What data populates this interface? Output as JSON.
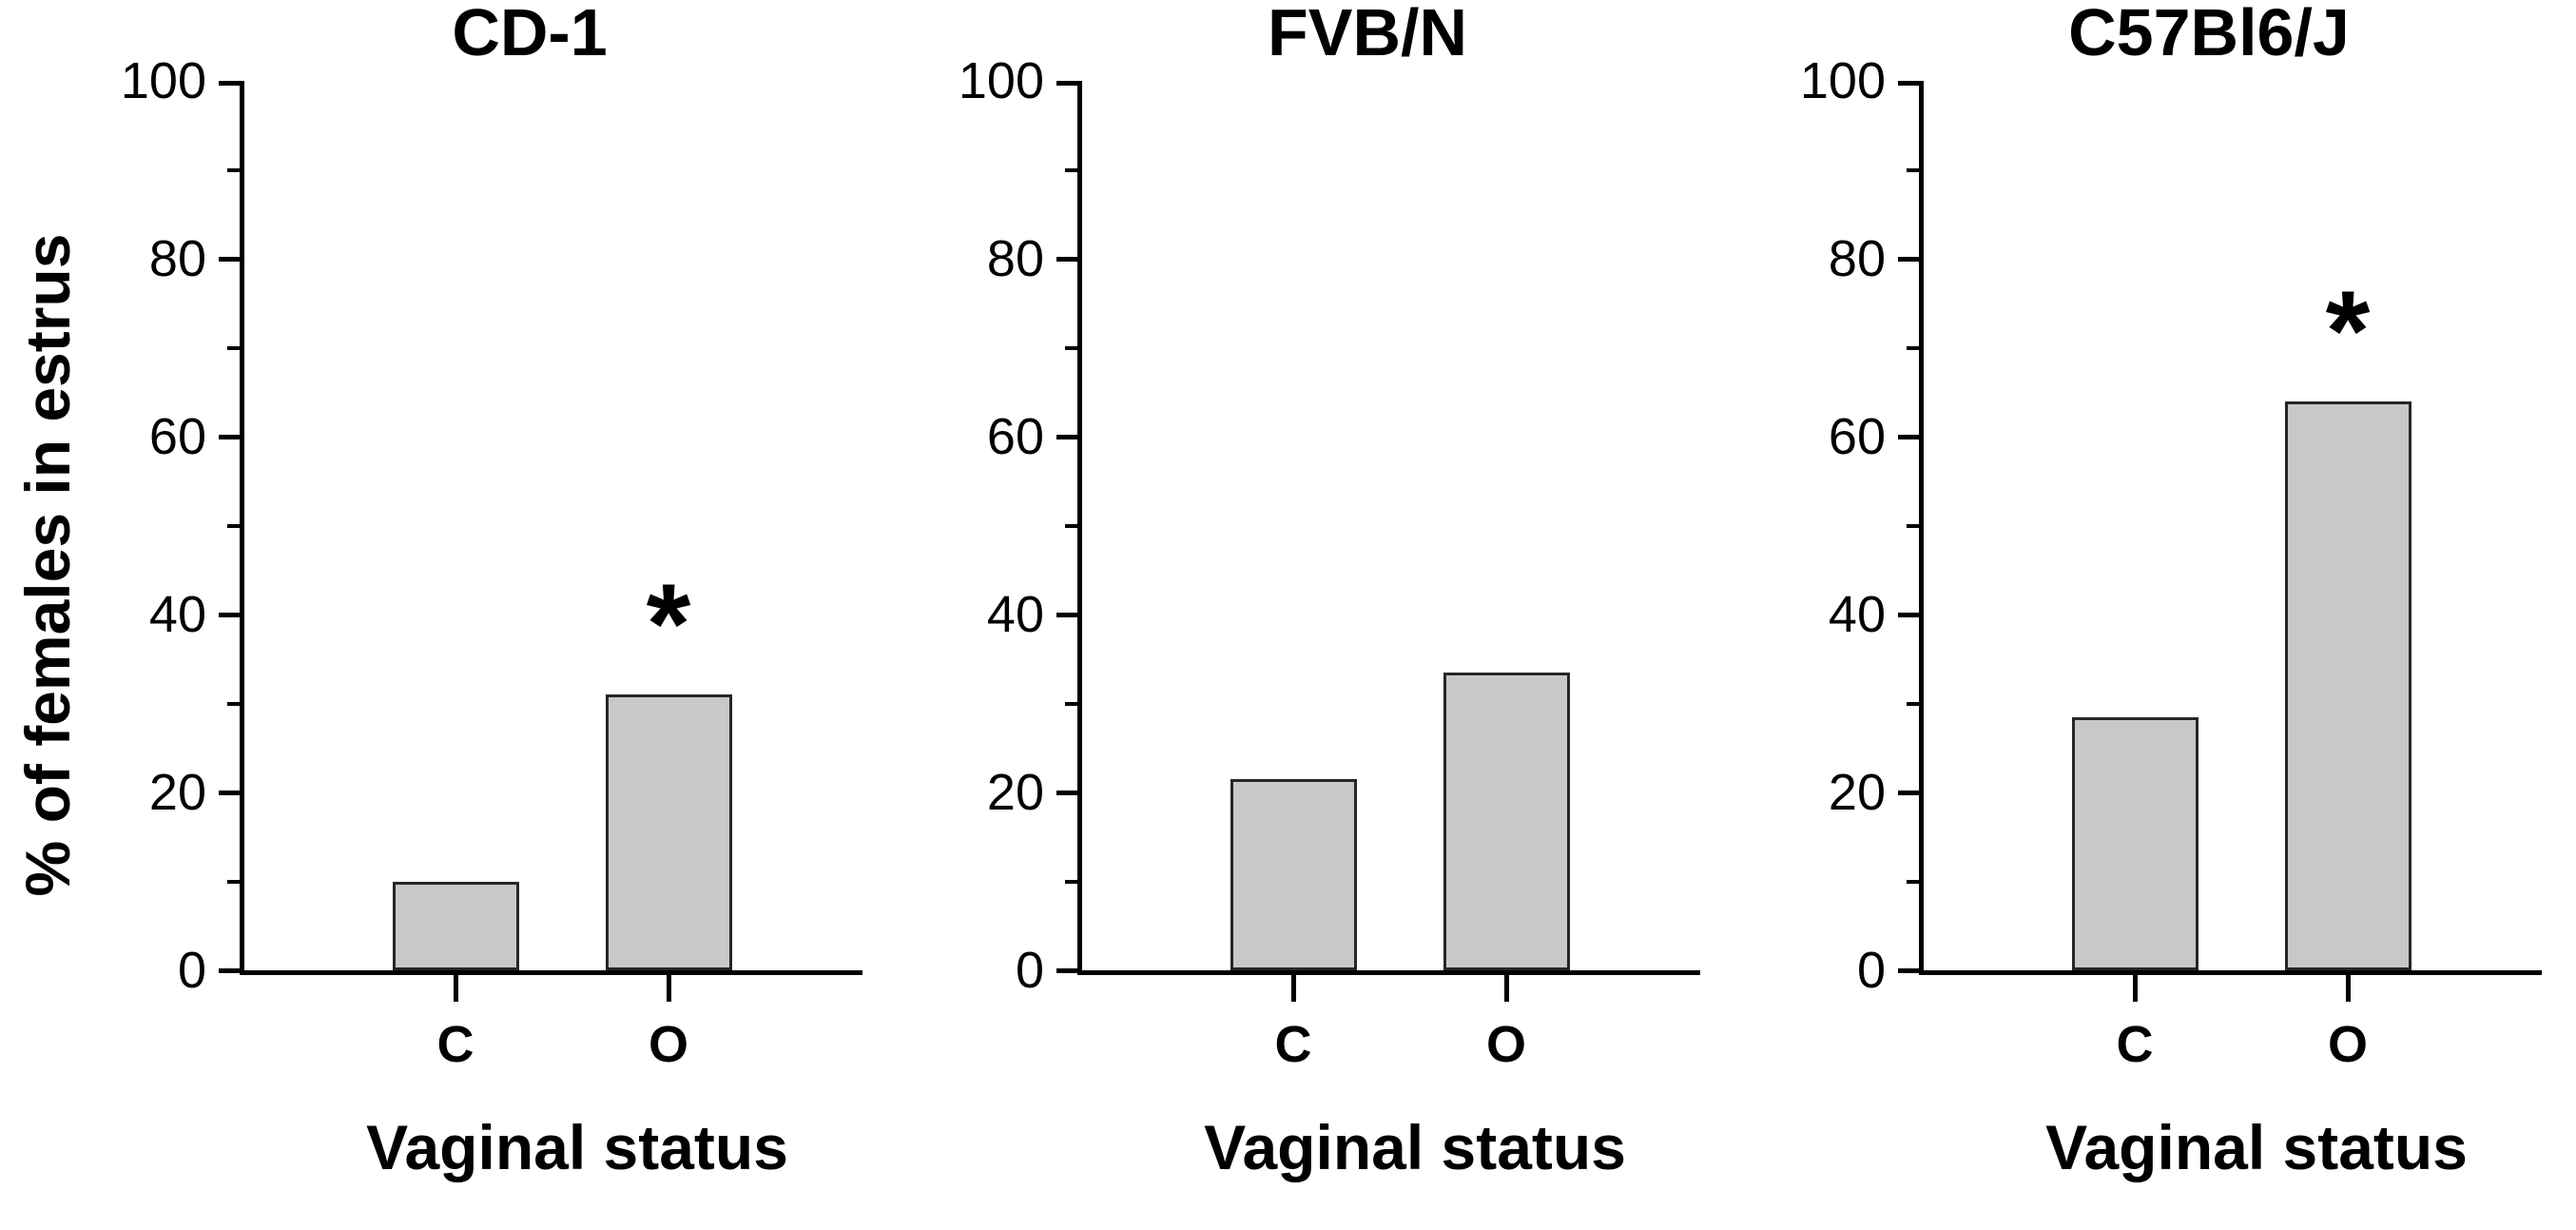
{
  "figure": {
    "ylabel": "% of females in estrus",
    "significance_marker": "*",
    "bar_fill_color": "#c8c8c8",
    "bar_border_color": "#262626",
    "axis_color": "#000000"
  },
  "chart_data": [
    {
      "type": "bar",
      "title": "CD-1",
      "xlabel": "Vaginal status",
      "ylabel": "% of females in estrus",
      "categories": [
        "C",
        "O"
      ],
      "values": [
        10,
        31
      ],
      "significant": [
        false,
        true
      ],
      "ylim": [
        0,
        100
      ],
      "ytick_major_step": 20,
      "ytick_minor_step": 10,
      "ytick_labels": [
        "0",
        "20",
        "40",
        "60",
        "80",
        "100"
      ],
      "grid": false,
      "legend": false
    },
    {
      "type": "bar",
      "title": "FVB/N",
      "xlabel": "Vaginal status",
      "categories": [
        "C",
        "O"
      ],
      "values": [
        21.5,
        33.5
      ],
      "significant": [
        false,
        false
      ],
      "ylim": [
        0,
        100
      ],
      "ytick_major_step": 20,
      "ytick_minor_step": 10,
      "ytick_labels": [
        "0",
        "20",
        "40",
        "60",
        "80",
        "100"
      ],
      "grid": false,
      "legend": false
    },
    {
      "type": "bar",
      "title": "C57Bl6/J",
      "xlabel": "Vaginal status",
      "categories": [
        "C",
        "O"
      ],
      "values": [
        28.5,
        64
      ],
      "significant": [
        false,
        true
      ],
      "ylim": [
        0,
        100
      ],
      "ytick_major_step": 20,
      "ytick_minor_step": 10,
      "ytick_labels": [
        "0",
        "20",
        "40",
        "60",
        "80",
        "100"
      ],
      "grid": false,
      "legend": false
    }
  ]
}
